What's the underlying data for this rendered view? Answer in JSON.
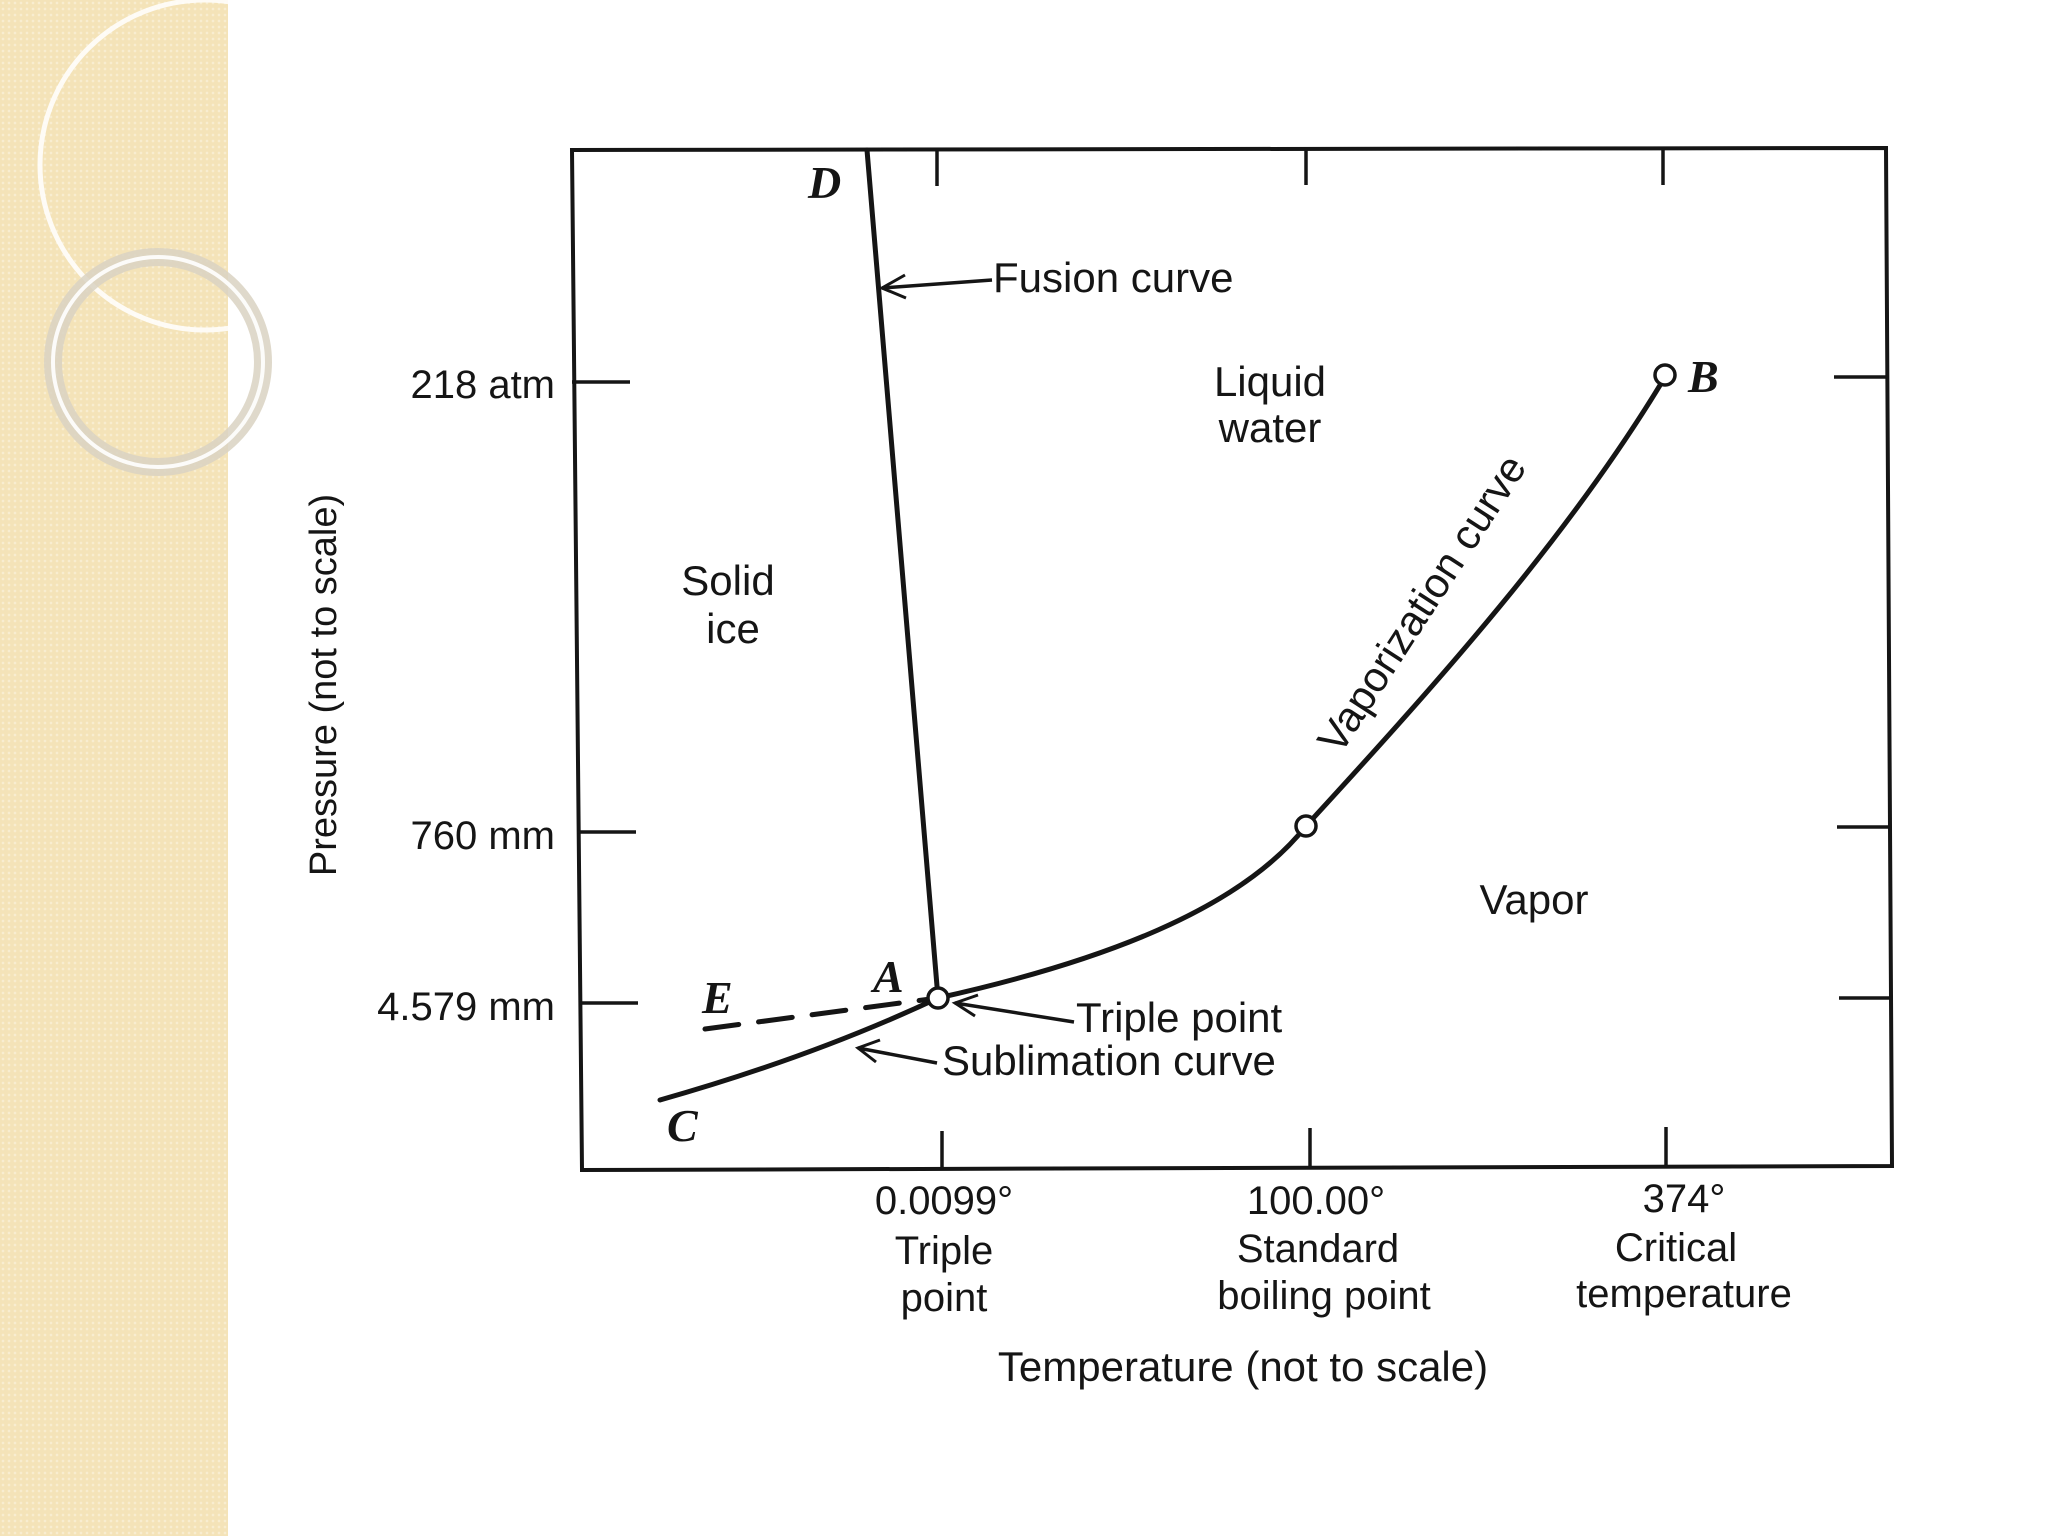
{
  "theme": {
    "strip_color": "#f4e3b8",
    "ink": "#151515",
    "background": "#ffffff"
  },
  "diagram": {
    "y_axis_label": "Pressure (not to scale)",
    "x_axis_label": "Temperature (not to scale)",
    "y_ticks": [
      {
        "label": "218 atm"
      },
      {
        "label": "760 mm"
      },
      {
        "label": "4.579 mm"
      }
    ],
    "x_ticks": [
      {
        "value": "0.0099°",
        "caption": [
          "Triple",
          "point"
        ]
      },
      {
        "value": "100.00°",
        "caption": [
          "Standard",
          "boiling point"
        ]
      },
      {
        "value": "374°",
        "caption": [
          "Critical",
          "temperature"
        ]
      }
    ],
    "regions": {
      "solid": [
        "Solid",
        "ice"
      ],
      "liquid": [
        "Liquid",
        "water"
      ],
      "vapor": "Vapor"
    },
    "curve_labels": {
      "fusion": "Fusion curve",
      "vaporization": "Vaporization curve",
      "sublimation": "Sublimation curve",
      "triple_point": "Triple point"
    },
    "point_letters": {
      "A": "A",
      "B": "B",
      "C": "C",
      "D": "D",
      "E": "E"
    }
  }
}
